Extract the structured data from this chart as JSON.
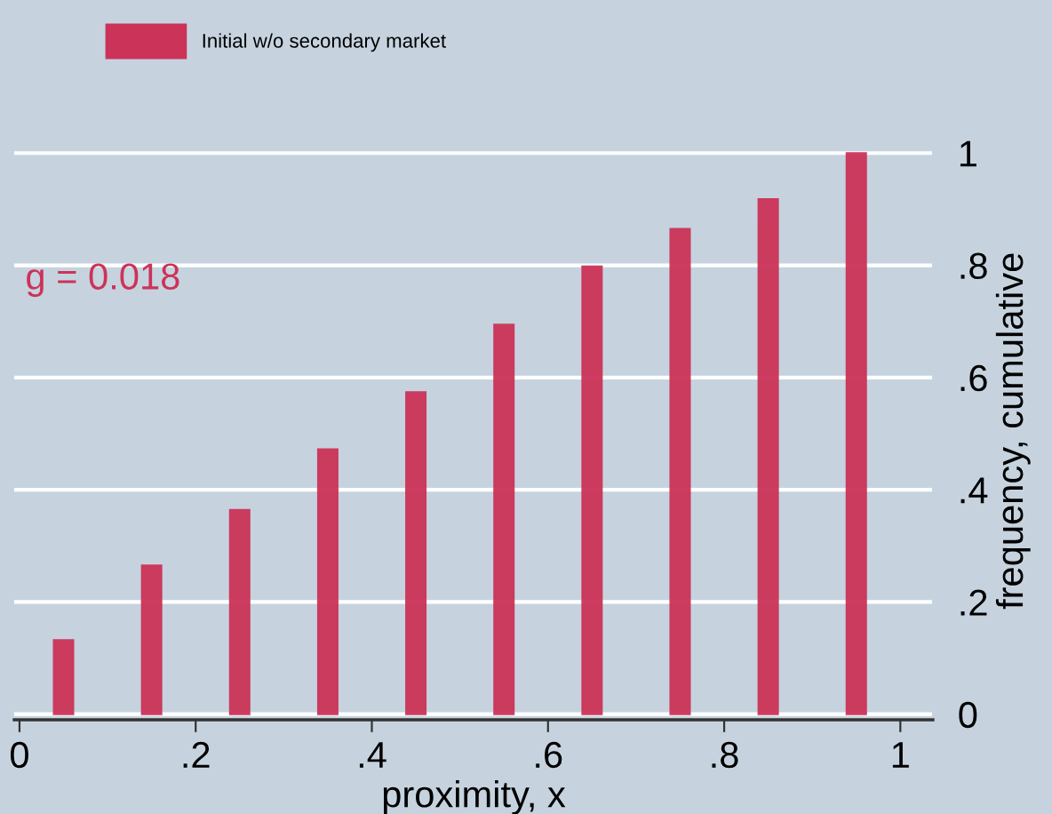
{
  "chart_data": {
    "type": "bar",
    "xlabel": "proximity, x",
    "ylabel": "frequency, cumulative",
    "x": [
      0.05,
      0.15,
      0.25,
      0.35,
      0.45,
      0.55,
      0.65,
      0.75,
      0.85,
      0.95
    ],
    "series": [
      {
        "name": "Initial w/o secondary market",
        "color": "#cc3358",
        "values": [
          0.132,
          0.265,
          0.364,
          0.472,
          0.574,
          0.694,
          0.798,
          0.865,
          0.918,
          1.0
        ]
      }
    ],
    "xlim": [
      -0.006,
      1.037
    ],
    "ylim": [
      -0.01,
      1.02
    ],
    "xticks": [
      {
        "value": 0,
        "label": "0"
      },
      {
        "value": 0.2,
        "label": ".2"
      },
      {
        "value": 0.4,
        "label": ".4"
      },
      {
        "value": 0.6,
        "label": ".6"
      },
      {
        "value": 0.8,
        "label": ".8"
      },
      {
        "value": 1,
        "label": "1"
      }
    ],
    "yticks": [
      {
        "value": 0,
        "label": "0"
      },
      {
        "value": 0.2,
        "label": ".2"
      },
      {
        "value": 0.4,
        "label": ".4"
      },
      {
        "value": 0.6,
        "label": ".6"
      },
      {
        "value": 0.8,
        "label": ".8"
      },
      {
        "value": 1,
        "label": "1"
      }
    ],
    "grid": "y",
    "legend": "top",
    "annotations": [
      "g = 0.018"
    ]
  }
}
